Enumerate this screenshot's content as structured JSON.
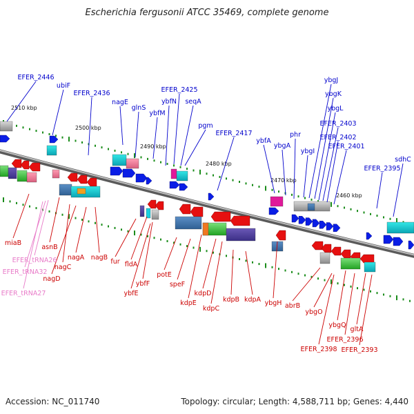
{
  "title": "Escherichia fergusonii ATCC 35469, complete genome",
  "footer": {
    "accession": "Accession: NC_011740",
    "summary": "Topology: circular; Length: 4,588,711 bp; Genes: 4,440"
  },
  "colors": {
    "plus_label": "#0000cc",
    "minus_label": "#cc0000",
    "trna_label": "#e87ac8",
    "backbone": "#8a8a8a",
    "tick": "#1a8c1a",
    "forward_arrow": "#0a1ee6",
    "reverse_arrow": "#e61010"
  },
  "ticks": [
    {
      "label": "2510 kbp"
    },
    {
      "label": "2500 kbp"
    },
    {
      "label": "2490 kbp"
    },
    {
      "label": "2480 kbp"
    },
    {
      "label": "2470 kbp"
    },
    {
      "label": "2460 kbp"
    }
  ],
  "plus_genes": [
    "EFER_2446",
    "ubiF",
    "EFER_2436",
    "nagE",
    "glnS",
    "ybfM",
    "ybfN",
    "EFER_2425",
    "seqA",
    "pgm",
    "EFER_2417",
    "ybfA",
    "ybgA",
    "phr",
    "ybgI",
    "ybgJ",
    "ybgK",
    "ybgL",
    "EFER_2403",
    "EFER_2402",
    "EFER_2401",
    "EFER_2395",
    "sdhC"
  ],
  "minus_genes": [
    "miaB",
    "asnB",
    "nagC",
    "nagD",
    "nagA",
    "nagB",
    "fur",
    "fldA",
    "ybfF",
    "ybfE",
    "potE",
    "speF",
    "kdpE",
    "kdpD",
    "kdpC",
    "kdpB",
    "kdpA",
    "ybgH",
    "abrB",
    "ybgO",
    "EFER_2398",
    "ybgQ",
    "EFER_2396",
    "gltA",
    "EFER_2393"
  ],
  "trna_genes": [
    "EFER_tRNA26",
    "EFER_tRNA32",
    "EFER_tRNA27"
  ]
}
